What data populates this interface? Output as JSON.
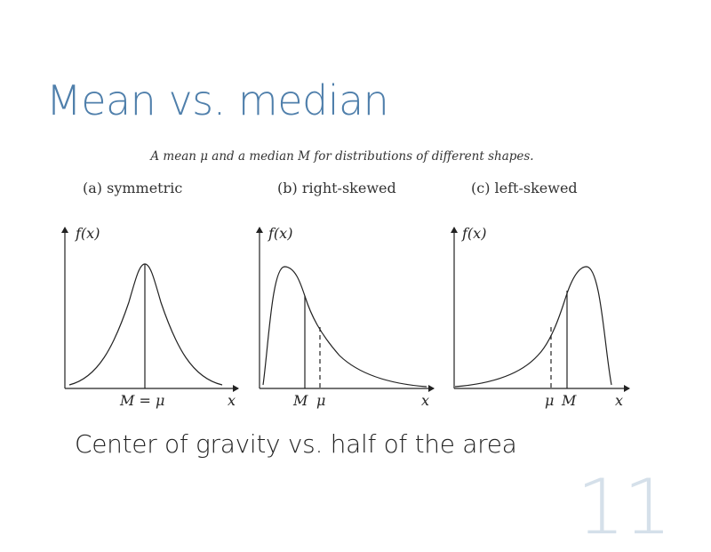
{
  "slide": {
    "title": "Mean vs. median",
    "figure_caption": "A mean μ and a median M for distributions of different shapes.",
    "subtitle": "Center of gravity vs. half of the area",
    "page_number": "11"
  },
  "panels": [
    {
      "label": "(a) symmetric",
      "y_label": "f(x)",
      "x_label": "x",
      "marker_label": "M = μ"
    },
    {
      "label": "(b) right-skewed",
      "y_label": "f(x)",
      "x_label": "x",
      "median_label": "M",
      "mean_label": "μ"
    },
    {
      "label": "(c) left-skewed",
      "y_label": "f(x)",
      "x_label": "x",
      "mean_label": "μ",
      "median_label": "M"
    }
  ]
}
